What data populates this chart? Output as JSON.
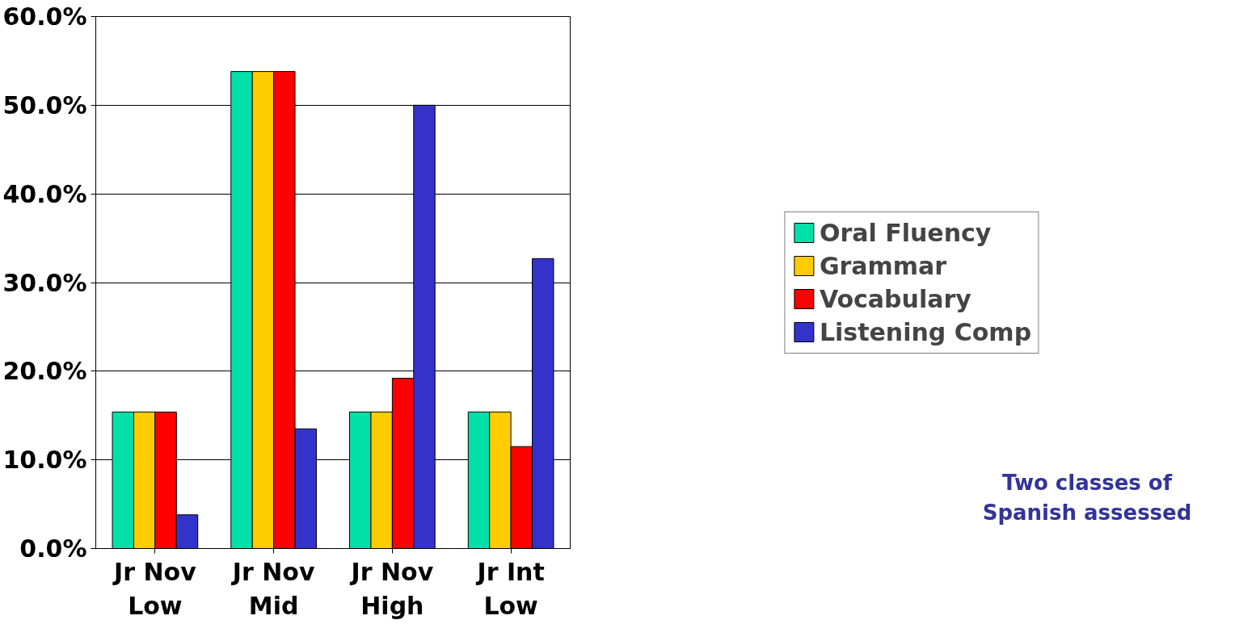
{
  "chart_data": {
    "type": "bar",
    "categories": [
      "Jr Nov\nLow",
      "Jr Nov\nMid",
      "Jr Nov\nHigh",
      "Jr Int\nLow"
    ],
    "series": [
      {
        "name": "Oral Fluency",
        "color": "#00e0a8",
        "values": [
          15.4,
          53.8,
          15.4,
          15.4
        ]
      },
      {
        "name": "Grammar",
        "color": "#ffcc00",
        "values": [
          15.4,
          53.8,
          15.4,
          15.4
        ]
      },
      {
        "name": "Vocabulary",
        "color": "#ff0000",
        "values": [
          15.4,
          53.8,
          19.2,
          11.5
        ]
      },
      {
        "name": "Listening Comp",
        "color": "#3333cc",
        "values": [
          3.8,
          13.5,
          50.0,
          32.7
        ]
      }
    ],
    "ylim": [
      0,
      60
    ],
    "yticks": [
      {
        "value": 0,
        "label": "0.0%"
      },
      {
        "value": 10,
        "label": "10.0%"
      },
      {
        "value": 20,
        "label": "20.0%"
      },
      {
        "value": 30,
        "label": "30.0%"
      },
      {
        "value": 40,
        "label": "40.0%"
      },
      {
        "value": 50,
        "label": "50.0%"
      },
      {
        "value": 60,
        "label": "60.0%"
      }
    ],
    "grid": "y",
    "legend": "right",
    "annotations": [
      "Two classes of\nSpanish assessed"
    ]
  }
}
